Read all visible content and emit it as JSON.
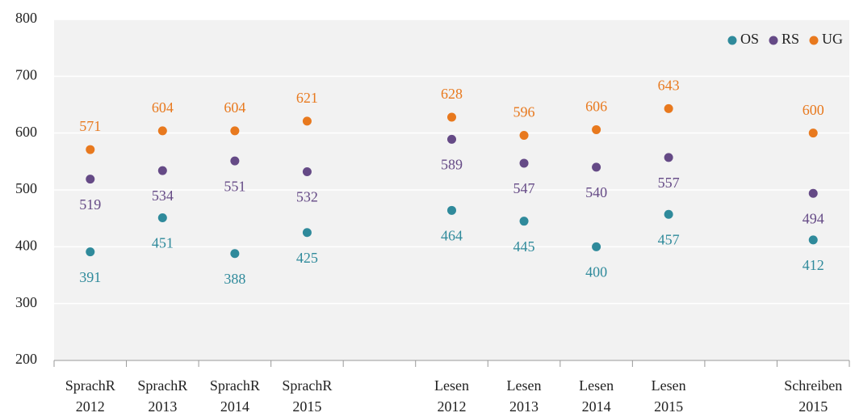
{
  "chart_data": {
    "type": "dot",
    "categories": [
      [
        "SprachR",
        "2012"
      ],
      [
        "SprachR",
        "2013"
      ],
      [
        "SprachR",
        "2014"
      ],
      [
        "SprachR",
        "2015"
      ],
      null,
      [
        "Lesen",
        "2012"
      ],
      [
        "Lesen",
        "2013"
      ],
      [
        "Lesen",
        "2014"
      ],
      [
        "Lesen",
        "2015"
      ],
      null,
      [
        "Schreiben",
        "2015"
      ]
    ],
    "series": [
      {
        "name": "OS",
        "color": "#2f8a9b",
        "values": [
          391,
          451,
          388,
          425,
          null,
          464,
          445,
          400,
          457,
          null,
          412
        ]
      },
      {
        "name": "RS",
        "color": "#654a86",
        "values": [
          519,
          534,
          551,
          532,
          null,
          589,
          547,
          540,
          557,
          null,
          494
        ]
      },
      {
        "name": "UG",
        "color": "#e8791e",
        "values": [
          571,
          604,
          604,
          621,
          null,
          628,
          596,
          606,
          643,
          null,
          600
        ]
      }
    ],
    "ylim": [
      200,
      800
    ],
    "yticks": [
      200,
      300,
      400,
      500,
      600,
      700,
      800
    ],
    "grid": true,
    "legend": "top-right"
  }
}
